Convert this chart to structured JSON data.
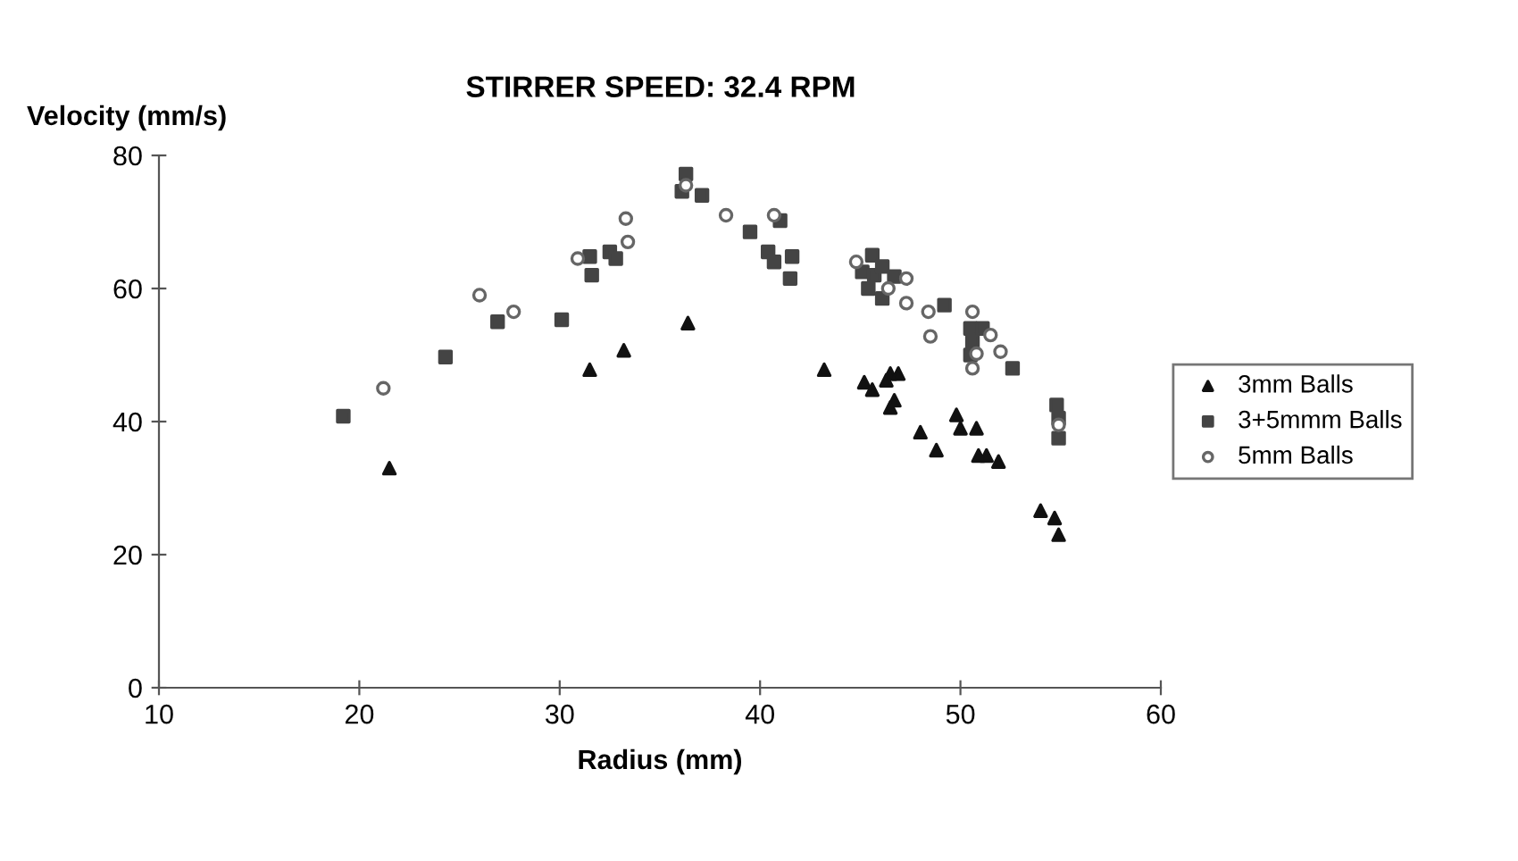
{
  "chart_data": {
    "type": "scatter",
    "title": "STIRRER SPEED: 32.4 RPM",
    "xlabel": "Radius (mm)",
    "ylabel": "Velocity (mm/s)",
    "xlim": [
      10,
      60
    ],
    "xticks": [
      10,
      20,
      30,
      40,
      50,
      60
    ],
    "ylim": [
      0,
      80
    ],
    "yticks": [
      0,
      20,
      40,
      60,
      80
    ],
    "grid": false,
    "legend": "right",
    "series": [
      {
        "name": "3mm Balls",
        "color": "#111111",
        "marker": "triangle",
        "x": [
          21.5,
          31.5,
          33.2,
          36.4,
          43.2,
          45.2,
          45.6,
          46.3,
          46.5,
          46.9,
          46.5,
          46.7,
          48.0,
          48.8,
          49.8,
          50.0,
          50.8,
          50.9,
          51.3,
          51.9,
          54.0,
          54.7,
          54.9
        ],
        "values": [
          33.0,
          47.8,
          50.7,
          54.8,
          47.8,
          45.9,
          44.8,
          46.2,
          47.2,
          47.2,
          42.1,
          43.2,
          38.4,
          35.7,
          41.0,
          39.0,
          39.0,
          34.9,
          34.9,
          34.0,
          26.6,
          25.5,
          23.0
        ]
      },
      {
        "name": "3+5mmm Balls",
        "color": "#444444",
        "marker": "square",
        "x": [
          19.2,
          24.3,
          26.9,
          30.1,
          31.6,
          31.5,
          32.5,
          32.8,
          36.1,
          36.3,
          37.1,
          39.5,
          40.4,
          40.7,
          41.6,
          41.5,
          41.0,
          45.6,
          45.1,
          45.7,
          46.1,
          45.4,
          46.1,
          46.7,
          49.2,
          50.5,
          51.1,
          50.6,
          50.5,
          52.6,
          54.8,
          54.9,
          54.9
        ],
        "values": [
          40.8,
          49.7,
          55.0,
          55.3,
          62.0,
          64.8,
          65.5,
          64.5,
          74.6,
          77.2,
          74.0,
          68.5,
          65.5,
          64.0,
          64.8,
          61.5,
          70.2,
          65.0,
          62.5,
          62.0,
          63.3,
          60.0,
          58.5,
          61.8,
          57.5,
          54.0,
          54.0,
          52.0,
          50.0,
          48.0,
          42.5,
          40.5,
          37.5
        ]
      },
      {
        "name": "5mm Balls",
        "color": "#666666",
        "marker": "circle",
        "x": [
          21.2,
          26.0,
          27.7,
          30.9,
          33.4,
          33.3,
          36.3,
          38.3,
          40.7,
          44.8,
          47.3,
          46.4,
          47.3,
          48.4,
          48.5,
          50.6,
          51.5,
          52.0,
          50.6,
          50.8,
          54.9
        ],
        "values": [
          45.0,
          59.0,
          56.5,
          64.5,
          67.0,
          70.5,
          75.5,
          71.0,
          71.0,
          64.0,
          61.5,
          60.0,
          57.8,
          56.5,
          52.8,
          56.5,
          53.0,
          50.5,
          48.0,
          50.2,
          39.5
        ]
      }
    ]
  }
}
